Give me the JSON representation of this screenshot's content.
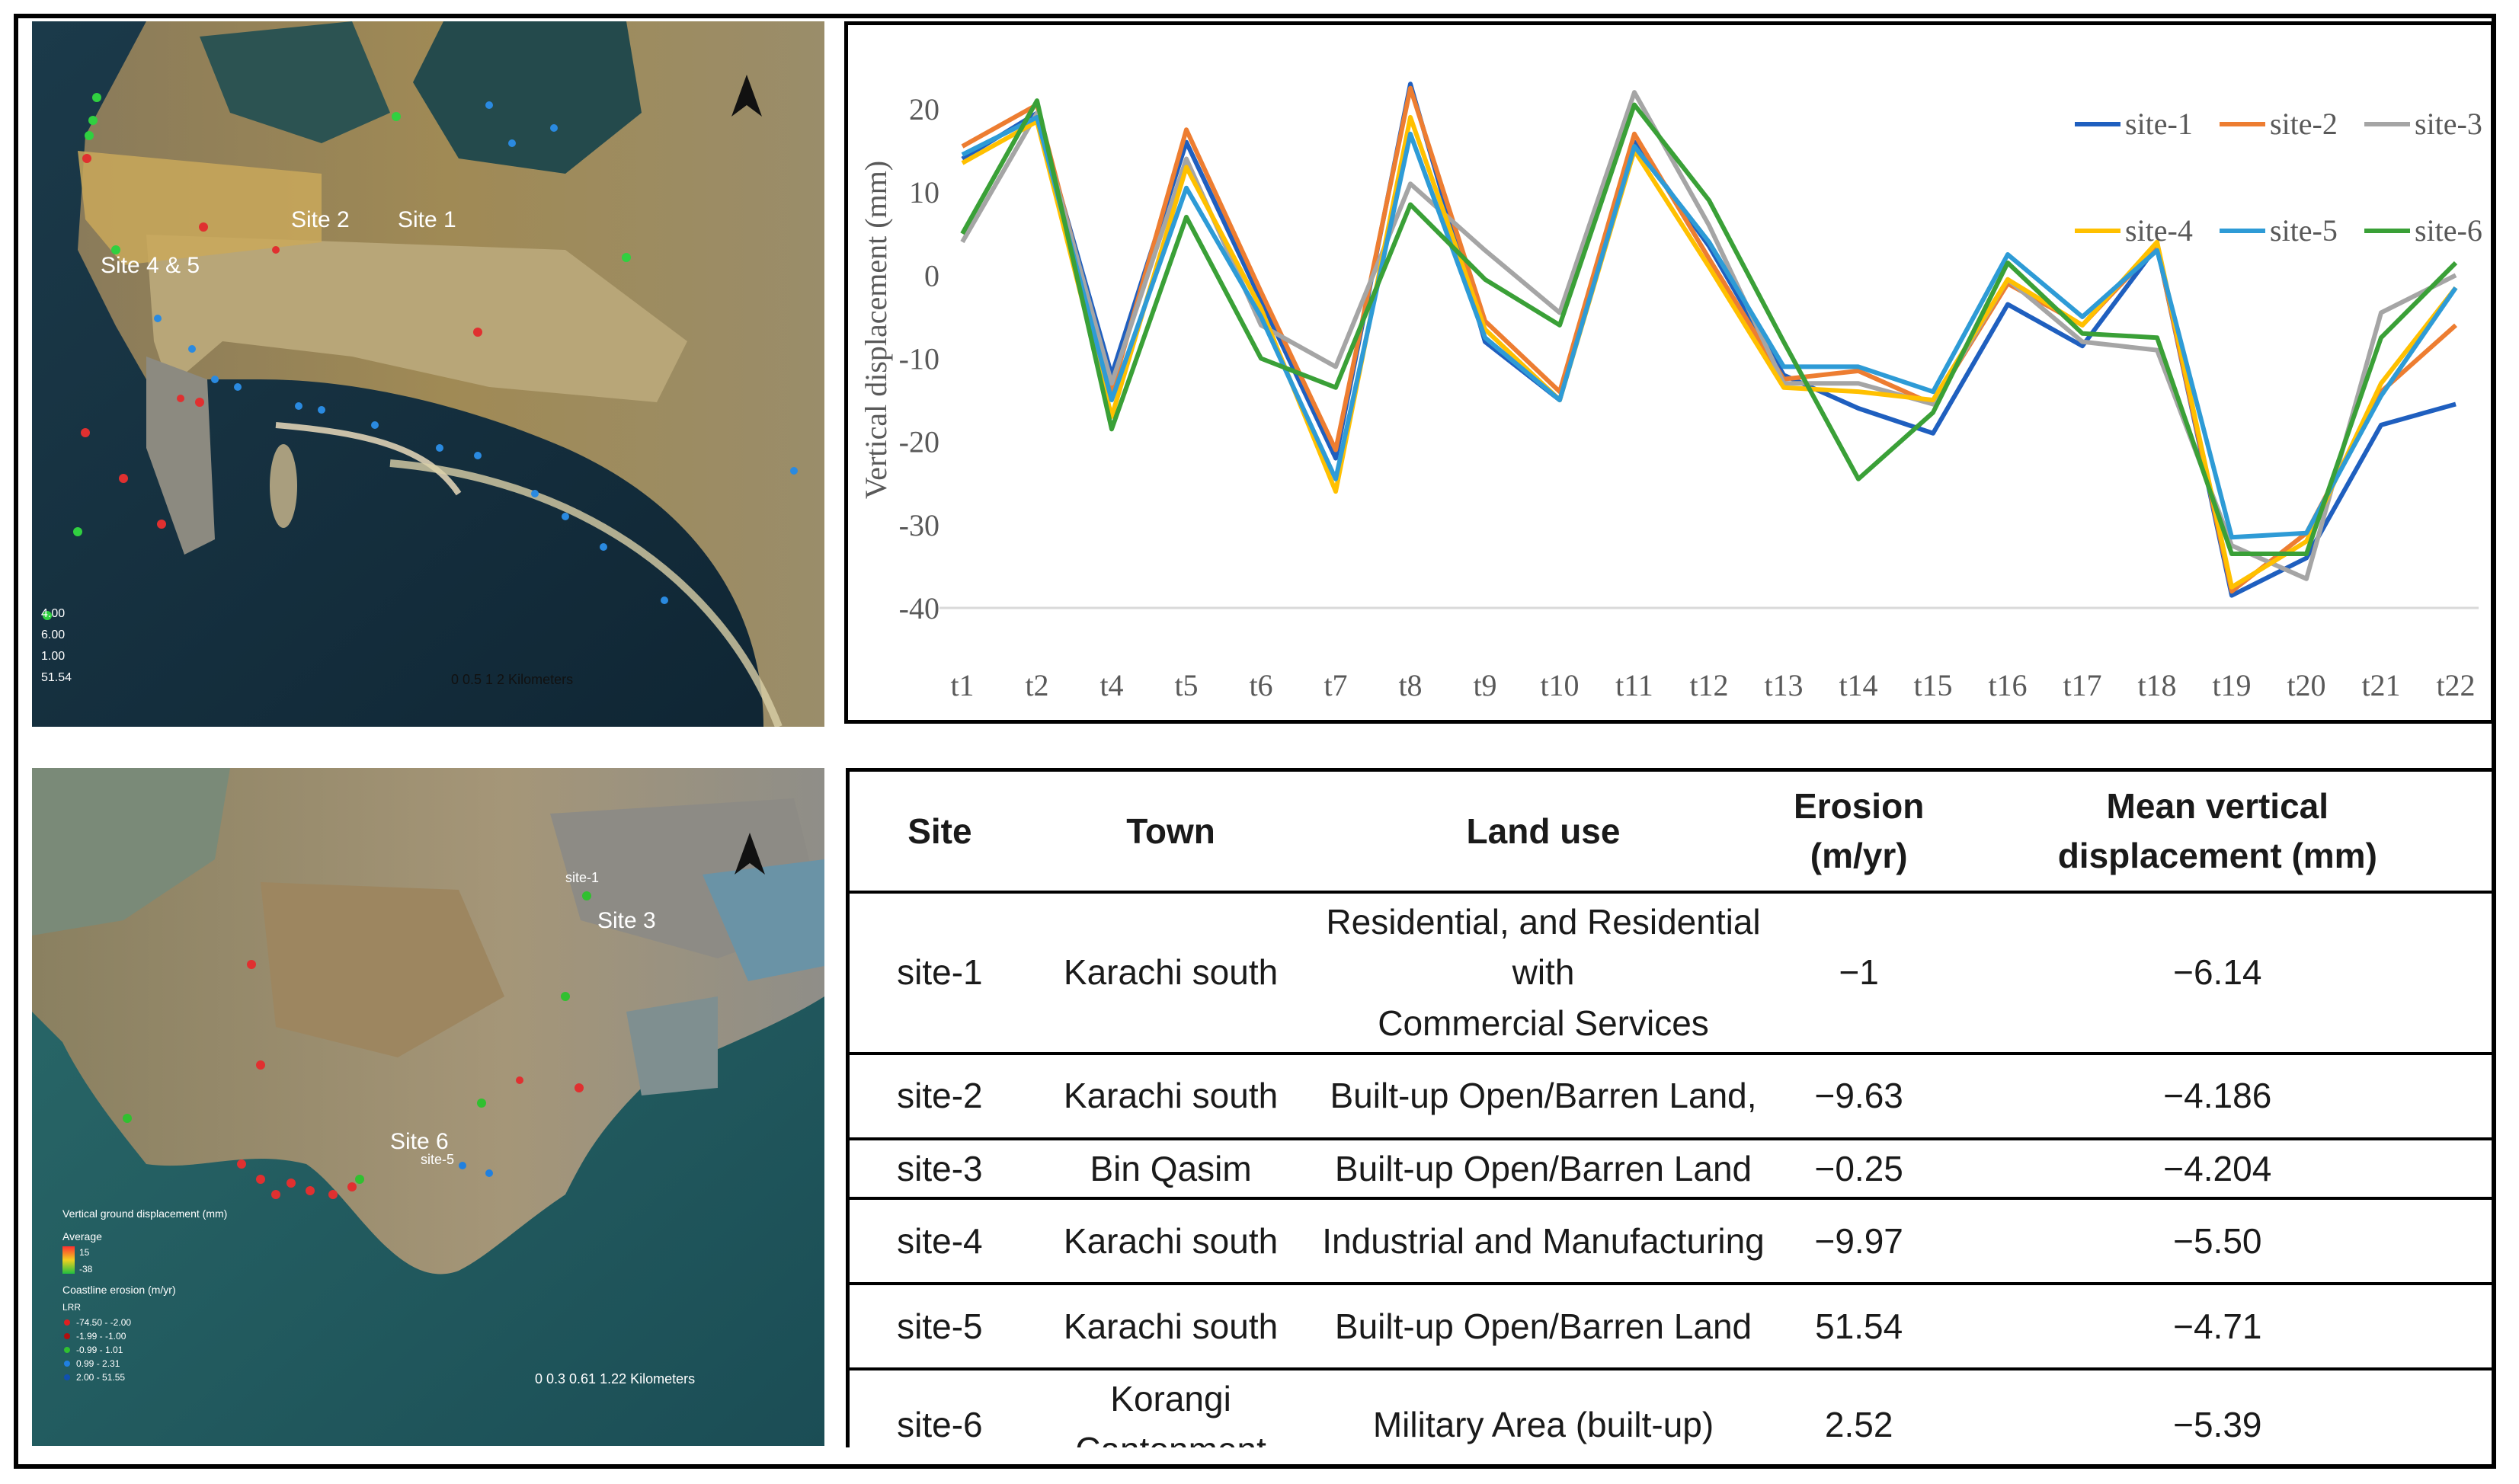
{
  "map_top": {
    "labels": {
      "site_2": "Site 2",
      "site_1": "Site 1",
      "site_4_5": "Site 4 & 5"
    },
    "scale_text": "0  0.5    1          2 Kilometers",
    "legend_values": [
      "4.00",
      "6.00",
      "1.00",
      "51.54"
    ]
  },
  "map_bottom": {
    "labels": {
      "site_3": "Site 3",
      "site_3_small": "site-1",
      "site_6": "Site 6",
      "site_6_small": "site-5"
    },
    "legend": {
      "title": "Vertical ground displacement (mm)",
      "average": "Average",
      "high": "15",
      "low": "-38",
      "erosion_title": "Coastline erosion (m/yr)",
      "lrr": "LRR",
      "items": [
        {
          "label": "-74.50 - -2.00",
          "color": "#e02020"
        },
        {
          "label": "-1.99 - -1.00",
          "color": "#b01010"
        },
        {
          "label": "-0.99 - 1.01",
          "color": "#30c030"
        },
        {
          "label": "0.99 - 2.31",
          "color": "#2080e0"
        },
        {
          "label": "2.00 - 51.55",
          "color": "#1050b0"
        }
      ]
    },
    "scale_text": "0    0.3  0.61        1.22 Kilometers"
  },
  "chart_data": {
    "type": "line",
    "ylabel": "Vertical  displacement  (mm)",
    "ylim": [
      -40,
      20
    ],
    "yticks": [
      20,
      10,
      0,
      -10,
      -20,
      -30,
      -40
    ],
    "categories": [
      "t1",
      "t2",
      "t4",
      "t5",
      "t6",
      "t7",
      "t8",
      "t9",
      "t10",
      "t11",
      "t12",
      "t13",
      "t14",
      "t15",
      "t16",
      "t17",
      "t18",
      "t19",
      "t20",
      "t21",
      "t22"
    ],
    "legend_position": "top-right",
    "series": [
      {
        "name": "site-1",
        "color": "#1f5fbf",
        "values": [
          14,
          19.5,
          -12,
          16,
          -3,
          -22,
          23,
          -8,
          -15,
          16,
          3.5,
          -12,
          -16,
          -19,
          -3.5,
          -8.5,
          3.5,
          -38.5,
          -34,
          -18,
          -15.5
        ]
      },
      {
        "name": "site-2",
        "color": "#ed7d31",
        "values": [
          15.5,
          20.5,
          -14,
          17.5,
          -2,
          -21,
          22.5,
          -5.5,
          -14,
          17,
          2,
          -12.5,
          -11.5,
          -15.5,
          -1,
          -6,
          3.5,
          -38,
          -31,
          -14,
          -6
        ]
      },
      {
        "name": "site-3",
        "color": "#a5a5a5",
        "values": [
          4,
          19.5,
          -13,
          14,
          -6,
          -11,
          11,
          3,
          -4.5,
          22,
          6,
          -13,
          -13,
          -15.5,
          -0.5,
          -8,
          -9,
          -32.5,
          -36.5,
          -4.5,
          0
        ]
      },
      {
        "name": "site-4",
        "color": "#ffc000",
        "values": [
          13.5,
          18.5,
          -17,
          13,
          -4,
          -26,
          19,
          -6.5,
          -15,
          15,
          1,
          -13.5,
          -14,
          -15,
          -0.5,
          -6,
          4,
          -37.5,
          -32,
          -13,
          -1.5
        ]
      },
      {
        "name": "site-5",
        "color": "#2e9bd6",
        "values": [
          14.5,
          19,
          -15,
          10.5,
          -5,
          -24.5,
          17,
          -7.5,
          -15,
          15.5,
          4,
          -11,
          -11,
          -14,
          2.5,
          -5,
          3,
          -31.5,
          -31,
          -14.5,
          -1.5
        ]
      },
      {
        "name": "site-6",
        "color": "#3aa037",
        "values": [
          5,
          21,
          -18.5,
          7,
          -10,
          -13.5,
          8.5,
          -0.5,
          -6,
          20.5,
          9,
          -8,
          -24.5,
          -16.5,
          1.5,
          -7,
          -7.5,
          -33.5,
          -33.5,
          -7.5,
          1.5
        ]
      }
    ]
  },
  "table": {
    "headers": {
      "site": "Site",
      "town": "Town",
      "land_use": "Land use",
      "erosion_l1": "Erosion",
      "erosion_l2": "(m/yr)",
      "mvd_l1": "Mean vertical",
      "mvd_l2": "displacement (mm)"
    },
    "rows": [
      {
        "site": "site-1",
        "town": "Karachi south",
        "land_use_l1": "Residential, and Residential with",
        "land_use_l2": "Commercial Services",
        "erosion": "−1",
        "mvd": "−6.14"
      },
      {
        "site": "site-2",
        "town": "Karachi south",
        "land_use_l1": "Built-up Open/Barren Land,",
        "land_use_l2": "",
        "erosion": "−9.63",
        "mvd": "−4.186"
      },
      {
        "site": "site-3",
        "town": "Bin Qasim",
        "land_use_l1": "Built-up Open/Barren Land",
        "land_use_l2": "",
        "erosion": "−0.25",
        "mvd": "−4.204"
      },
      {
        "site": "site-4",
        "town": "Karachi south",
        "land_use_l1": "Industrial and Manufacturing",
        "land_use_l2": "",
        "erosion": "−9.97",
        "mvd": "−5.50"
      },
      {
        "site": "site-5",
        "town": "Karachi south",
        "land_use_l1": "Built-up Open/Barren Land",
        "land_use_l2": "",
        "erosion": "51.54",
        "mvd": "−4.71"
      },
      {
        "site": "site-6",
        "town": "Korangi Cantonment",
        "land_use_l1": "Military Area (built-up)",
        "land_use_l2": "",
        "erosion": "2.52",
        "mvd": "−5.39"
      }
    ]
  }
}
